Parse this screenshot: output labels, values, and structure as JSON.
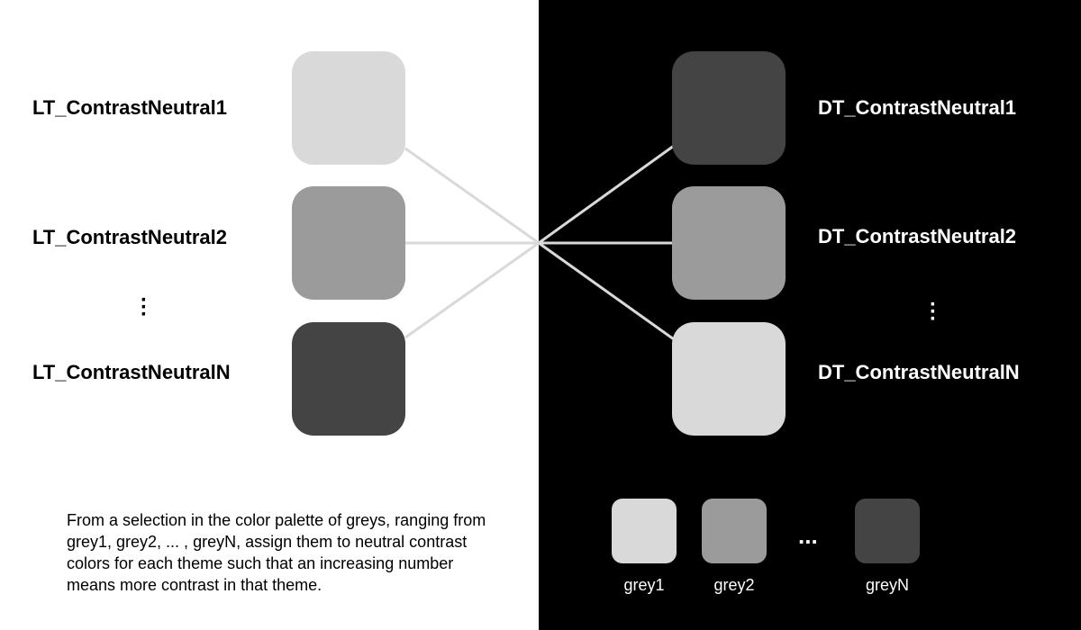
{
  "colors": {
    "light_bg": "#ffffff",
    "dark_bg": "#000000",
    "grey1": "#d9d9d9",
    "grey2": "#9b9b9b",
    "greyN": "#444444",
    "connector": "#d9d9d9"
  },
  "light_theme": {
    "rows": [
      {
        "label": "LT_ContrastNeutral1",
        "color": "#d9d9d9"
      },
      {
        "label": "LT_ContrastNeutral2",
        "color": "#9b9b9b"
      },
      {
        "label": "LT_ContrastNeutralN",
        "color": "#444444"
      }
    ],
    "ellipsis": "⋮"
  },
  "dark_theme": {
    "rows": [
      {
        "label": "DT_ContrastNeutral1",
        "color": "#444444"
      },
      {
        "label": "DT_ContrastNeutral2",
        "color": "#9b9b9b"
      },
      {
        "label": "DT_ContrastNeutralN",
        "color": "#d9d9d9"
      }
    ],
    "ellipsis": "⋮"
  },
  "palette": {
    "items": [
      {
        "label": "grey1",
        "color": "#d9d9d9"
      },
      {
        "label": "grey2",
        "color": "#9b9b9b"
      },
      {
        "label": "greyN",
        "color": "#444444"
      }
    ],
    "ellipsis": "..."
  },
  "caption": "From a selection in the color palette of greys, ranging from grey1, grey2, ... , greyN, assign them to neutral contrast colors for each theme such that an increasing number means more contrast in that theme."
}
